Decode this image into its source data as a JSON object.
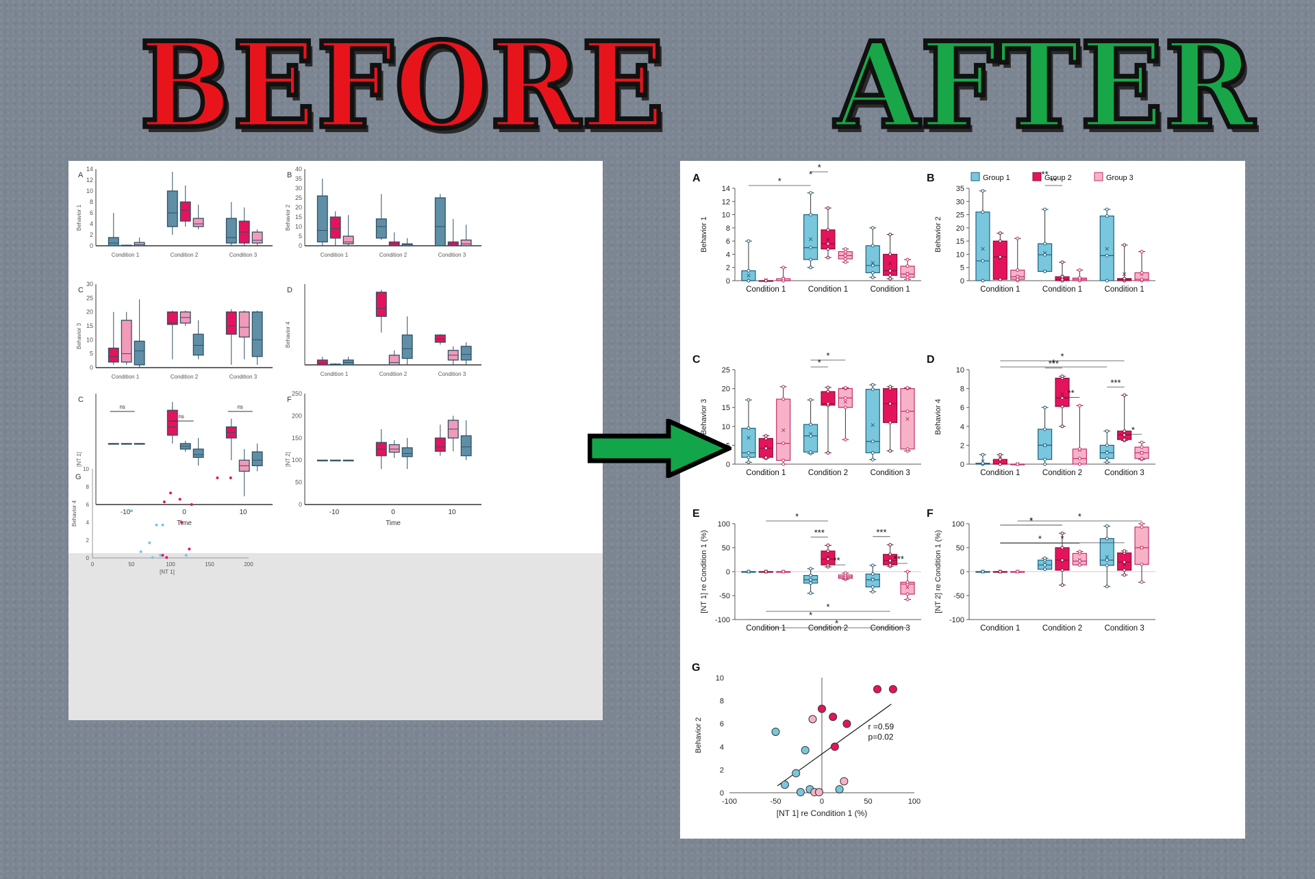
{
  "banner": {
    "before": "BEFORE",
    "after": "AFTER"
  },
  "colors": {
    "g1": "#79c7dc",
    "g2": "#e4145c",
    "g3": "#f7b2c8",
    "old1": "#5f8fa6",
    "old2": "#e4145c",
    "old3": "#f39ab9",
    "arrow_fill": "#13a54a"
  },
  "chart_data": {
    "after": {
      "legend": [
        "Group 1",
        "Group 2",
        "Group 3"
      ],
      "panels": {
        "A": {
          "letter": "A",
          "ylabel": "Behavior 1",
          "ylim": [
            0,
            14
          ],
          "ticks": [
            0,
            2,
            4,
            6,
            8,
            10,
            12,
            14
          ],
          "categories": [
            "Condition 1",
            "Condition 1",
            "Condition 1"
          ],
          "boxes": [
            [
              0,
              0,
              0,
              1.5,
              6,
              0.8
            ],
            [
              0,
              0,
              0,
              0,
              0,
              0.1
            ],
            [
              0,
              0,
              0,
              0.3,
              2,
              0.3
            ],
            [
              2,
              3.2,
              5,
              10,
              13.3,
              6.3
            ],
            [
              3.5,
              4.8,
              5.6,
              7.7,
              11,
              6.2
            ],
            [
              2.8,
              3.3,
              3.8,
              4.4,
              4.8,
              3.9
            ],
            [
              0.5,
              1.2,
              2.3,
              5.3,
              8,
              2.7
            ],
            [
              0.3,
              0.8,
              1.5,
              4,
              7,
              2.6
            ],
            [
              0.2,
              0.5,
              1,
              2.2,
              3.2,
              1.1
            ]
          ],
          "sig": [
            {
              "a": 0,
              "b": 3,
              "t": "*"
            },
            {
              "a": 3,
              "b": 3.3,
              "t": "*"
            },
            {
              "a": 3.3,
              "b": 4.3,
              "t": "*"
            }
          ]
        },
        "B": {
          "letter": "B",
          "ylabel": "Behavior 2",
          "ylim": [
            0,
            35
          ],
          "ticks": [
            0,
            5,
            10,
            15,
            20,
            25,
            30,
            35
          ],
          "categories": [
            "Condition 1",
            "Condition 1",
            "Condition 1"
          ],
          "boxes": [
            [
              0,
              0,
              7.5,
              26,
              34,
              12
            ],
            [
              0.5,
              0.5,
              9,
              15,
              18,
              8.5
            ],
            [
              0,
              0.5,
              1.5,
              4,
              16,
              1.5
            ],
            [
              3.5,
              3.5,
              9.8,
              14,
              27,
              10.5
            ],
            [
              0,
              0,
              0.5,
              1.5,
              7,
              1.6
            ],
            [
              0,
              0,
              0.5,
              1,
              4,
              0.8
            ],
            [
              0,
              0,
              9.5,
              24.5,
              27,
              12
            ],
            [
              0,
              0,
              0.5,
              0.8,
              13.5,
              2.4
            ],
            [
              0,
              0,
              0.5,
              3,
              11,
              2.4
            ]
          ],
          "sig": [
            {
              "a": 3,
              "b": 4.3,
              "t": "**"
            },
            {
              "a": 3,
              "b": 3.5,
              "t": "**"
            }
          ]
        },
        "C": {
          "letter": "C",
          "ylabel": "Behavior 3",
          "ylim": [
            0,
            25
          ],
          "ticks": [
            0,
            5,
            10,
            15,
            20,
            25
          ],
          "categories": [
            "Condition 1",
            "Condition 2",
            "Condition 3"
          ],
          "boxes": [
            [
              0.5,
              1.8,
              3,
              9.5,
              17,
              7
            ],
            [
              1.5,
              1.8,
              4.2,
              6.8,
              7.5,
              4.5
            ],
            [
              0,
              1,
              5.5,
              17.2,
              20.5,
              9
            ],
            [
              2.8,
              3.2,
              7.5,
              10.5,
              17,
              8
            ],
            [
              3,
              15.6,
              16,
              19.2,
              20.3,
              15.8
            ],
            [
              6.5,
              15,
              17.5,
              20,
              20.2,
              16.5
            ],
            [
              1.2,
              3,
              6,
              19.8,
              21,
              10.3
            ],
            [
              3.5,
              11,
              16,
              20,
              20.5,
              16
            ],
            [
              3.5,
              4,
              14,
              20,
              20.2,
              12
            ]
          ],
          "sig": [
            {
              "a": 3.5,
              "b": 4,
              "t": "*"
            },
            {
              "a": 3.5,
              "b": 5,
              "t": "*"
            }
          ]
        },
        "D": {
          "letter": "D",
          "ylabel": "Behavior 4",
          "ylim": [
            0,
            10
          ],
          "ticks": [
            0,
            2,
            4,
            6,
            8,
            10
          ],
          "categories": [
            "Condition 1",
            "Condition 2",
            "Condition 3"
          ],
          "boxes": [
            [
              0,
              0,
              0,
              0.1,
              1,
              0.3
            ],
            [
              0,
              0,
              0,
              0.5,
              1,
              0.6
            ],
            [
              0,
              0,
              0,
              0,
              0,
              0
            ],
            [
              0,
              0.5,
              2,
              3.7,
              6,
              2
            ],
            [
              4,
              6.1,
              7,
              9.1,
              9.3,
              7.4
            ],
            [
              0,
              0,
              0.6,
              1.6,
              6.2,
              1.5
            ],
            [
              0.2,
              0.6,
              1.2,
              2,
              3.5,
              1.3
            ],
            [
              2.5,
              2.6,
              3.1,
              3.5,
              7.3,
              3.1
            ],
            [
              0.5,
              0.6,
              1.2,
              1.8,
              2.3,
              1.2
            ]
          ],
          "sig": [
            {
              "a": 3,
              "b": 4,
              "t": "***"
            },
            {
              "a": 4,
              "b": 5,
              "t": "**"
            },
            {
              "a": 6,
              "b": 7,
              "t": "***"
            },
            {
              "a": 7,
              "b": 8,
              "t": "*"
            },
            {
              "a": 1,
              "b": 6,
              "t": "*"
            },
            {
              "a": 1,
              "b": 7,
              "t": "*"
            }
          ]
        },
        "E": {
          "letter": "E",
          "ylabel": "[NT 1] re Condition 1 (%)",
          "ylim": [
            -100,
            100
          ],
          "ticks": [
            -100,
            -50,
            0,
            50,
            100
          ],
          "categories": [
            "Condition 1",
            "Condition 2",
            "Condition 3"
          ],
          "boxes": [
            [
              0,
              0,
              0,
              0,
              0,
              0
            ],
            [
              0,
              0,
              0,
              0,
              0,
              0
            ],
            [
              0,
              0,
              0,
              0,
              0,
              0
            ],
            [
              -45,
              -24,
              -17,
              -8,
              6,
              -17
            ],
            [
              10,
              14,
              26,
              43,
              55,
              30
            ],
            [
              -16,
              -14,
              -11,
              -7,
              -3,
              -10
            ],
            [
              -42,
              -32,
              -17,
              -5,
              13,
              -16
            ],
            [
              11,
              14,
              23,
              36,
              56,
              23
            ],
            [
              -58,
              -47,
              -26,
              -22,
              0,
              -33
            ]
          ],
          "sig": [
            {
              "a": 3,
              "b": 4,
              "t": "***"
            },
            {
              "a": 4,
              "b": 5,
              "t": "**"
            },
            {
              "a": 6,
              "b": 7,
              "t": "***"
            },
            {
              "a": 7,
              "b": 8,
              "t": "***"
            },
            {
              "a": 1,
              "b": 4,
              "t": "*"
            },
            {
              "a": 1,
              "b": 7,
              "t": "*"
            },
            {
              "a": 0,
              "b": 6,
              "t": "*"
            },
            {
              "a": 1,
              "b": 8,
              "t": "*"
            }
          ]
        },
        "F": {
          "letter": "F",
          "ylabel": "[NT 2] re Condition 1 (%)",
          "ylim": [
            -100,
            100
          ],
          "ticks": [
            -100,
            -50,
            0,
            50,
            100
          ],
          "categories": [
            "Condition 1",
            "Condition 2",
            "Condition 3"
          ],
          "boxes": [
            [
              0,
              0,
              0,
              0,
              0,
              0
            ],
            [
              0,
              0,
              0,
              0,
              0,
              0
            ],
            [
              0,
              0,
              0,
              0,
              0,
              0
            ],
            [
              5,
              5,
              14,
              24,
              28,
              16
            ],
            [
              -28,
              3,
              24,
              50,
              80,
              23
            ],
            [
              14,
              14,
              22,
              38,
              42,
              24
            ],
            [
              -31,
              13,
              24,
              69,
              95,
              31
            ],
            [
              -7,
              3,
              20,
              39,
              43,
              15
            ],
            [
              -22,
              15,
              50,
              93,
              100,
              50
            ]
          ],
          "sig": [
            {
              "a": 1,
              "b": 4,
              "t": "*"
            },
            {
              "a": 1,
              "b": 7,
              "t": "*"
            },
            {
              "a": 1,
              "b": 4,
              "t": "*"
            },
            {
              "a": 1,
              "b": 5,
              "t": "*"
            },
            {
              "a": 2,
              "b": 8,
              "t": "*"
            }
          ]
        },
        "G": {
          "letter": "G",
          "type": "scatter",
          "xlabel": "[NT 1] re Condition 1 (%)",
          "ylabel": "Behavior 2",
          "xlim": [
            -100,
            100
          ],
          "ylim": [
            0,
            10
          ],
          "xticks": [
            -100,
            -50,
            0,
            50,
            100
          ],
          "yticks": [
            0,
            2,
            4,
            6,
            8,
            10
          ],
          "r_text": "r =0.59",
          "p_text": "p=0.02",
          "fit": [
            [
              -48,
              0.6
            ],
            [
              75,
              7.7
            ]
          ],
          "points": [
            {
              "x": -50,
              "y": 5.3,
              "g": 1
            },
            {
              "x": -40,
              "y": 0.7,
              "g": 1
            },
            {
              "x": -28,
              "y": 1.7,
              "g": 1
            },
            {
              "x": -18,
              "y": 3.7,
              "g": 1
            },
            {
              "x": -23,
              "y": 0.05,
              "g": 1
            },
            {
              "x": -13,
              "y": 0.3,
              "g": 1
            },
            {
              "x": 19,
              "y": 0.3,
              "g": 1
            },
            {
              "x": -10,
              "y": 6.4,
              "g": 3
            },
            {
              "x": -8,
              "y": 0.05,
              "g": 3
            },
            {
              "x": -3,
              "y": 0.05,
              "g": 3
            },
            {
              "x": 24,
              "y": 1,
              "g": 3
            },
            {
              "x": 0,
              "y": 7.3,
              "g": 2
            },
            {
              "x": 12,
              "y": 6.6,
              "g": 2
            },
            {
              "x": 27,
              "y": 6,
              "g": 2
            },
            {
              "x": 14,
              "y": 4,
              "g": 2
            },
            {
              "x": 60,
              "y": 9,
              "g": 2
            },
            {
              "x": 77,
              "y": 9,
              "g": 2
            }
          ]
        }
      }
    },
    "before": {
      "panels": {
        "A": {
          "letter": "A",
          "ylabel": "Behavior 1",
          "ticks": [
            0,
            2,
            4,
            6,
            8,
            10,
            12,
            14
          ],
          "categories": [
            "Condition 1",
            "Condition 2",
            "Condition 3"
          ]
        },
        "B": {
          "letter": "B",
          "ylabel": "Behavior 2",
          "ticks": [
            0,
            5,
            10,
            15,
            20,
            25,
            30,
            35,
            40
          ],
          "categories": [
            "Condition 1",
            "Condition 2",
            "Condition 3"
          ]
        },
        "C": {
          "letter": "C",
          "ylabel": "Behavior 3",
          "ticks": [
            0,
            5,
            10,
            15,
            20,
            25,
            30
          ],
          "categories": [
            "Condition 1",
            "Condition 2",
            "Condition 3"
          ]
        },
        "D": {
          "letter": "D",
          "ylabel": "Behavior 4",
          "categories": [
            "Condition 1",
            "Condition 2",
            "Condition 3"
          ]
        },
        "E": {
          "letter": "C",
          "ylabel": "[NT 1]",
          "xlabel": "Time",
          "xticks": [
            "-10",
            "0",
            "10"
          ],
          "ns": [
            "ns",
            "ns",
            "ns"
          ]
        },
        "F": {
          "letter": "F",
          "ylabel": "[NT 2]",
          "xlabel": "Time",
          "ticks": [
            0,
            50,
            100,
            150,
            200,
            250
          ],
          "xticks": [
            "-10",
            "0",
            "10"
          ]
        },
        "G": {
          "letter": "G",
          "ylabel": "Behavior 4",
          "xlabel": "[NT 1]",
          "yticks": [
            0,
            2,
            4,
            6,
            8,
            10
          ],
          "xticks": [
            0,
            50,
            100,
            150,
            200
          ]
        }
      }
    }
  }
}
